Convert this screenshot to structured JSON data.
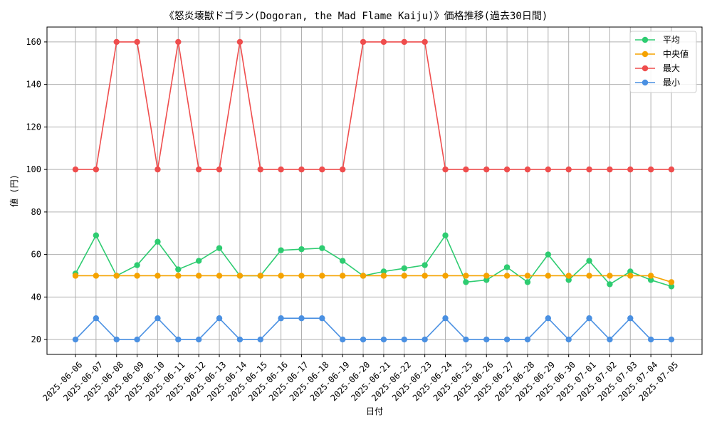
{
  "chart_data": {
    "type": "line",
    "title": "《怒炎壊獣ドゴラン(Dogoran, the Mad Flame Kaiju)》価格推移(過去30日間)",
    "xlabel": "日付",
    "ylabel": "値 (円)",
    "ylim": [
      13,
      167
    ],
    "yticks": [
      20,
      40,
      60,
      80,
      100,
      120,
      140,
      160
    ],
    "grid": true,
    "legend_position": "top-right",
    "categories": [
      "2025-06-06",
      "2025-06-07",
      "2025-06-08",
      "2025-06-09",
      "2025-06-10",
      "2025-06-11",
      "2025-06-12",
      "2025-06-13",
      "2025-06-14",
      "2025-06-15",
      "2025-06-16",
      "2025-06-17",
      "2025-06-18",
      "2025-06-19",
      "2025-06-20",
      "2025-06-21",
      "2025-06-22",
      "2025-06-23",
      "2025-06-24",
      "2025-06-25",
      "2025-06-26",
      "2025-06-27",
      "2025-06-28",
      "2025-06-29",
      "2025-06-30",
      "2025-07-01",
      "2025-07-02",
      "2025-07-03",
      "2025-07-04",
      "2025-07-05"
    ],
    "series": [
      {
        "name": "平均",
        "color": "#2ecc71",
        "values": [
          51,
          69,
          50,
          55,
          66,
          53,
          57,
          63,
          50,
          50,
          62,
          62.5,
          63,
          57,
          50,
          52,
          53.5,
          55,
          69,
          47,
          48,
          54,
          47,
          60,
          48,
          57,
          46,
          52,
          48,
          45
        ]
      },
      {
        "name": "中央値",
        "color": "#f5a300",
        "values": [
          50,
          50,
          50,
          50,
          50,
          50,
          50,
          50,
          50,
          50,
          50,
          50,
          50,
          50,
          50,
          50,
          50,
          50,
          50,
          50,
          50,
          50,
          50,
          50,
          50,
          50,
          50,
          50,
          50,
          47
        ]
      },
      {
        "name": "最大",
        "color": "#ef4d4d",
        "values": [
          100,
          100,
          160,
          160,
          100,
          160,
          100,
          100,
          160,
          100,
          100,
          100,
          100,
          100,
          160,
          160,
          160,
          160,
          100,
          100,
          100,
          100,
          100,
          100,
          100,
          100,
          100,
          100,
          100,
          100
        ]
      },
      {
        "name": "最小",
        "color": "#4a90e2",
        "values": [
          20,
          30,
          20,
          20,
          30,
          20,
          20,
          30,
          20,
          20,
          30,
          30,
          30,
          20,
          20,
          20,
          20,
          20,
          30,
          20,
          20,
          20,
          20,
          30,
          20,
          30,
          20,
          30,
          20,
          20
        ]
      }
    ]
  }
}
